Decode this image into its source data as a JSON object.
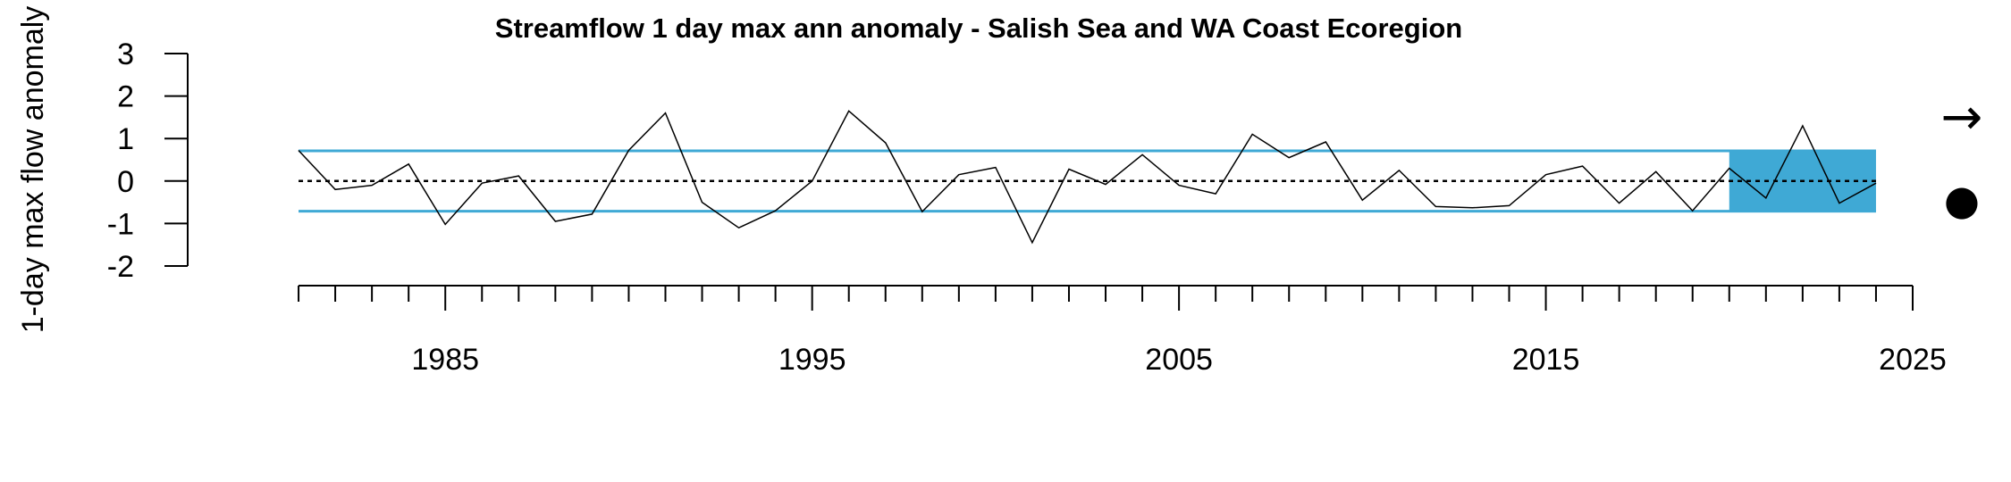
{
  "chart_data": {
    "type": "line",
    "title": "Streamflow 1 day max ann anomaly - Salish Sea and WA Coast Ecoregion",
    "xlabel": "",
    "ylabel": "1-day max flow anomaly",
    "xlim": [
      1980,
      2025
    ],
    "ylim": [
      -2,
      3
    ],
    "x_ticks": [
      1985,
      1995,
      2005,
      2015,
      2025
    ],
    "y_ticks": [
      -2,
      -1,
      0,
      1,
      2,
      3
    ],
    "reference_line": 0,
    "band": {
      "lower": -0.71,
      "upper": 0.71
    },
    "highlight_period": [
      2020,
      2024
    ],
    "colors": {
      "line": "#000000",
      "band": "#3fa9d5",
      "zero_line": "#000000"
    },
    "trend_symbol": "→",
    "mean_symbol": "●",
    "grid": false,
    "legend": "none",
    "series": [
      {
        "x": [
          1981,
          1982,
          1983,
          1984,
          1985,
          1986,
          1987,
          1988,
          1989,
          1990,
          1991,
          1992,
          1993,
          1994,
          1995,
          1996,
          1997,
          1998,
          1999,
          2000,
          2001,
          2002,
          2003,
          2004,
          2005,
          2006,
          2007,
          2008,
          2009,
          2010,
          2011,
          2012,
          2013,
          2014,
          2015,
          2016,
          2017,
          2018,
          2019,
          2020,
          2021,
          2022,
          2023,
          2024
        ],
        "y": [
          0.72,
          -0.2,
          -0.1,
          0.4,
          -1.02,
          -0.05,
          0.12,
          -0.95,
          -0.78,
          0.72,
          1.6,
          -0.5,
          -1.1,
          -0.7,
          0.0,
          1.65,
          0.9,
          -0.72,
          0.15,
          0.32,
          -1.45,
          0.28,
          -0.08,
          0.62,
          -0.1,
          -0.3,
          1.1,
          0.55,
          0.92,
          -0.45,
          0.25,
          -0.6,
          -0.63,
          -0.58,
          0.15,
          0.35,
          -0.52,
          0.22,
          -0.7,
          0.3,
          -0.4,
          1.3,
          -0.52,
          -0.05
        ]
      }
    ]
  }
}
